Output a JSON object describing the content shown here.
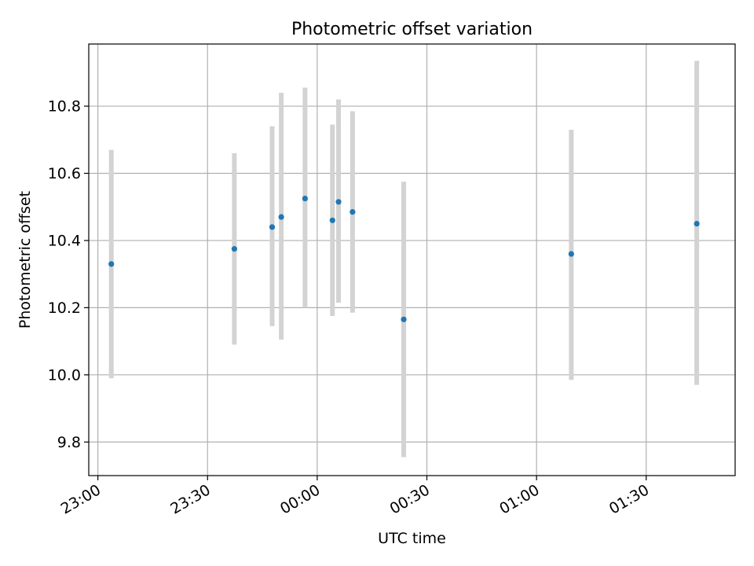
{
  "chart_data": {
    "type": "scatter",
    "title": "Photometric offset variation",
    "xlabel": "UTC time",
    "ylabel": "Photometric offset",
    "x_axis": {
      "kind": "time",
      "range": [
        "22:57:30",
        "01:54:20"
      ],
      "ticks": [
        "23:00",
        "23:30",
        "00:00",
        "00:30",
        "01:00",
        "01:30"
      ]
    },
    "y_axis": {
      "range": [
        9.7,
        10.985
      ],
      "ticks": [
        9.8,
        10.0,
        10.2,
        10.4,
        10.6,
        10.8
      ],
      "tick_labels": [
        "9.8",
        "10.0",
        "10.2",
        "10.4",
        "10.6",
        "10.8"
      ]
    },
    "grid": true,
    "colors": {
      "point": "#1f77b4",
      "errorbar": "#d3d3d3",
      "grid": "#b0b0b0"
    },
    "points": [
      {
        "x": "23:03:40",
        "y": 10.33,
        "y_low": 9.99,
        "y_high": 10.67
      },
      {
        "x": "23:37:20",
        "y": 10.375,
        "y_low": 10.09,
        "y_high": 10.66
      },
      {
        "x": "23:47:40",
        "y": 10.44,
        "y_low": 10.145,
        "y_high": 10.74
      },
      {
        "x": "23:50:10",
        "y": 10.47,
        "y_low": 10.105,
        "y_high": 10.84
      },
      {
        "x": "23:56:40",
        "y": 10.525,
        "y_low": 10.2,
        "y_high": 10.855
      },
      {
        "x": "00:04:10",
        "y": 10.46,
        "y_low": 10.175,
        "y_high": 10.745
      },
      {
        "x": "00:05:50",
        "y": 10.515,
        "y_low": 10.215,
        "y_high": 10.82
      },
      {
        "x": "00:09:40",
        "y": 10.485,
        "y_low": 10.185,
        "y_high": 10.785
      },
      {
        "x": "00:23:40",
        "y": 10.165,
        "y_low": 9.755,
        "y_high": 10.575
      },
      {
        "x": "01:09:30",
        "y": 10.36,
        "y_low": 9.985,
        "y_high": 10.73
      },
      {
        "x": "01:43:50",
        "y": 10.45,
        "y_low": 9.97,
        "y_high": 10.935
      }
    ]
  }
}
